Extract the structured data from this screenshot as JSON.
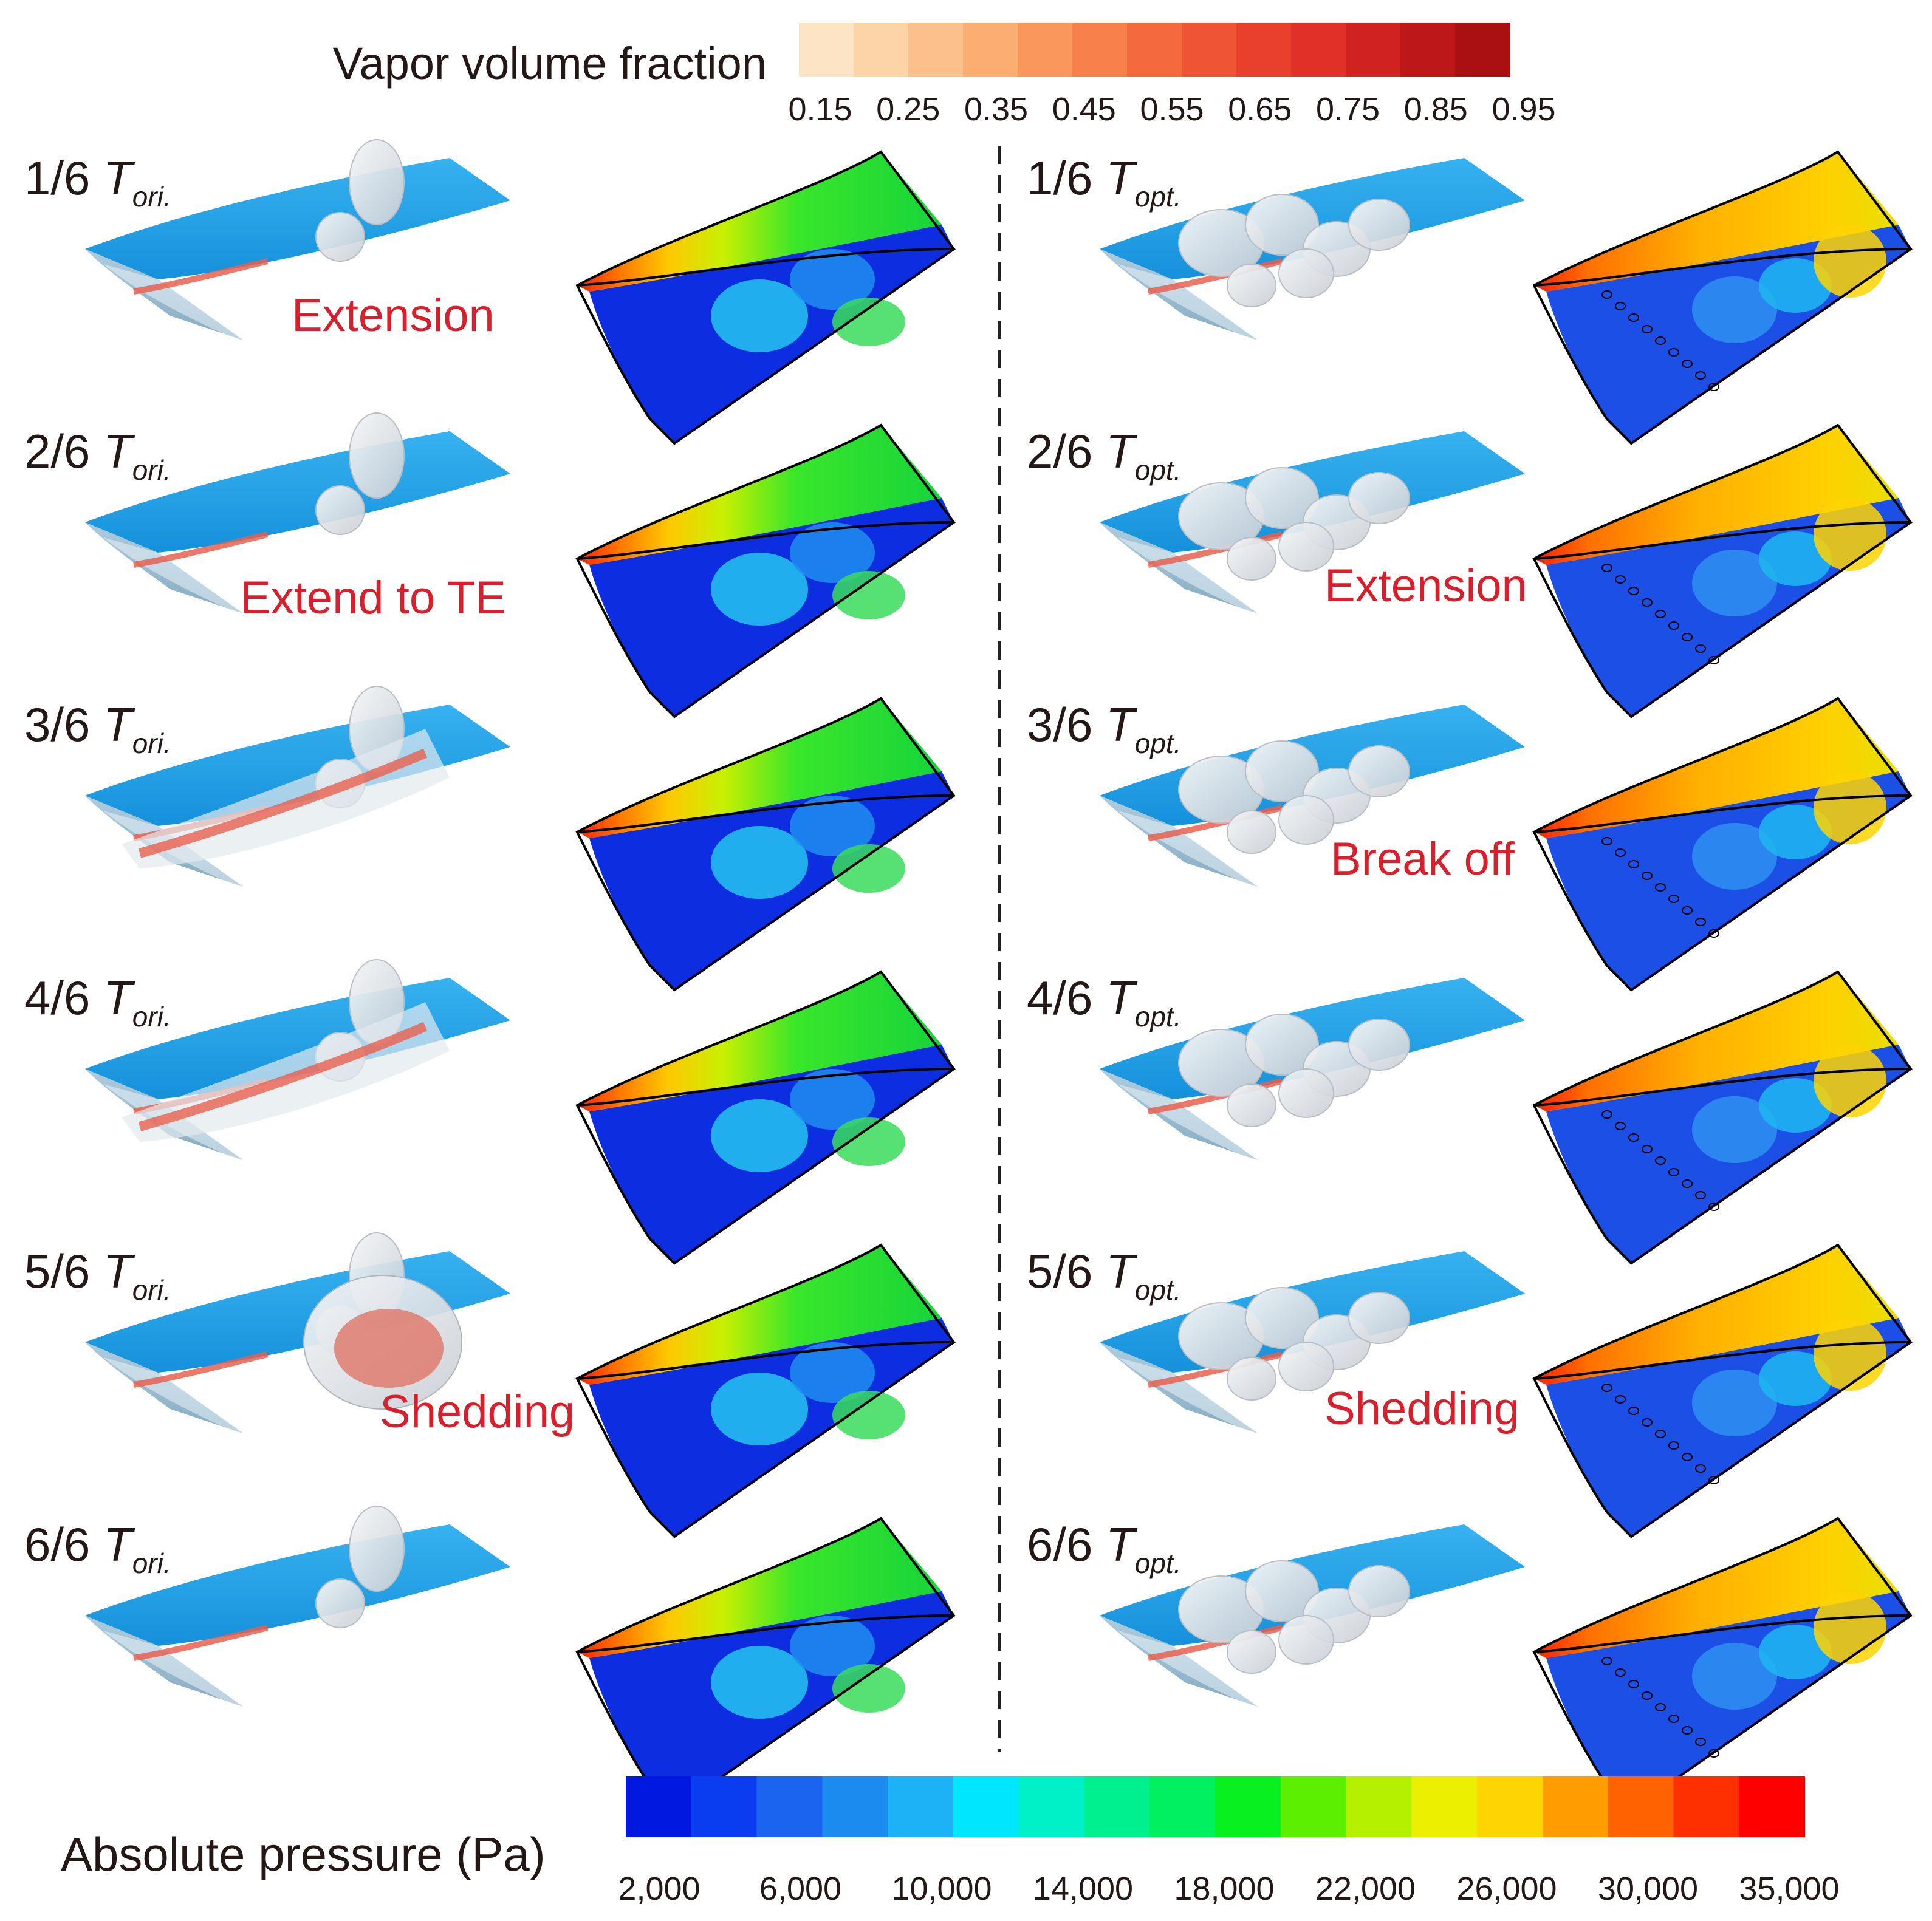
{
  "vapor_legend": {
    "title": "Vapor volume fraction",
    "ticks": [
      "0.15",
      "0.25",
      "0.35",
      "0.45",
      "0.55",
      "0.65",
      "0.75",
      "0.85",
      "0.95"
    ],
    "colors": [
      "#fde4c4",
      "#fdd3a8",
      "#fcc08c",
      "#fbad72",
      "#fa975c",
      "#f8804a",
      "#f46a3e",
      "#ef5535",
      "#e8402d",
      "#e03027",
      "#d02220",
      "#be1719",
      "#a91012"
    ]
  },
  "pressure_legend": {
    "title": "Absolute pressure (Pa)",
    "ticks": [
      "2,000",
      "6,000",
      "10,000",
      "14,000",
      "18,000",
      "22,000",
      "26,000",
      "30,000",
      "35,000"
    ],
    "colors": [
      "#0018e0",
      "#0b3df0",
      "#1a64f0",
      "#1c8bf0",
      "#1cb2f5",
      "#00e6ff",
      "#00f0c8",
      "#00f090",
      "#00f060",
      "#08f020",
      "#5cf000",
      "#b4f000",
      "#ecf000",
      "#ffd400",
      "#ff9c00",
      "#ff6200",
      "#ff3000",
      "#ff0000"
    ]
  },
  "left_labels": [
    {
      "frac": "1/6",
      "sub": "ori."
    },
    {
      "frac": "2/6",
      "sub": "ori."
    },
    {
      "frac": "3/6",
      "sub": "ori."
    },
    {
      "frac": "4/6",
      "sub": "ori."
    },
    {
      "frac": "5/6",
      "sub": "ori."
    },
    {
      "frac": "6/6",
      "sub": "ori."
    }
  ],
  "right_labels": [
    {
      "frac": "1/6",
      "sub": "opt."
    },
    {
      "frac": "2/6",
      "sub": "opt."
    },
    {
      "frac": "3/6",
      "sub": "opt."
    },
    {
      "frac": "4/6",
      "sub": "opt."
    },
    {
      "frac": "5/6",
      "sub": "opt."
    },
    {
      "frac": "6/6",
      "sub": "opt."
    }
  ],
  "period_symbol": "T",
  "annotations": {
    "left_row1": "Extension",
    "left_row2": "Extend to TE",
    "left_row5": "Shedding",
    "right_row2": "Extension",
    "right_row3": "Break off",
    "right_row5": "Shedding"
  },
  "colors": {
    "annotation": "#d91f2b",
    "foil": "#1ea1e6",
    "foil_dark": "#0f86cf",
    "text": "#231815",
    "divider": "#222222"
  }
}
